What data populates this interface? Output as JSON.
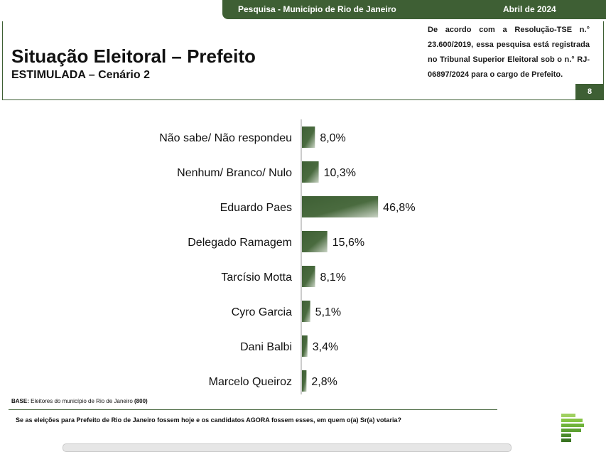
{
  "header": {
    "survey": "Pesquisa - Município de Rio de Janeiro",
    "date": "Abril de 2024",
    "title": "Situação Eleitoral – Prefeito",
    "subtitle": "ESTIMULADA – Cenário 2",
    "registration": "De acordo com a Resolução-TSE n.° 23.600/2019, essa pesquisa está registrada no Tribunal Superior Eleitoral sob o n.° RJ-06897/2024 para o cargo de Prefeito.",
    "page_number": "8"
  },
  "chart_data": {
    "type": "bar",
    "orientation": "horizontal",
    "categories": [
      "Não sabe/ Não respondeu",
      "Nenhum/ Branco/ Nulo",
      "Eduardo Paes",
      "Delegado Ramagem",
      "Tarcísio Motta",
      "Cyro Garcia",
      "Dani Balbi",
      "Marcelo Queiroz"
    ],
    "values": [
      8.0,
      10.3,
      46.8,
      15.6,
      8.1,
      5.1,
      3.4,
      2.8
    ],
    "value_labels": [
      "8,0%",
      "10,3%",
      "46,8%",
      "15,6%",
      "8,1%",
      "5,1%",
      "3,4%",
      "2,8%"
    ],
    "xlim": [
      0,
      100
    ],
    "bar_color": "#3e5f34",
    "grid": false,
    "legend": "none"
  },
  "footer": {
    "base_label": "BASE:",
    "base_text": "Eleitores do município de Rio de Janeiro",
    "base_count": "(800)",
    "question": "Se as eleições para Prefeito de Rio de Janeiro fossem hoje e os candidatos AGORA fossem esses, em quem o(a) Sr(a) votaria?"
  },
  "logo": {
    "icon": "company-logo-icon",
    "color": "#7bbf3a"
  }
}
